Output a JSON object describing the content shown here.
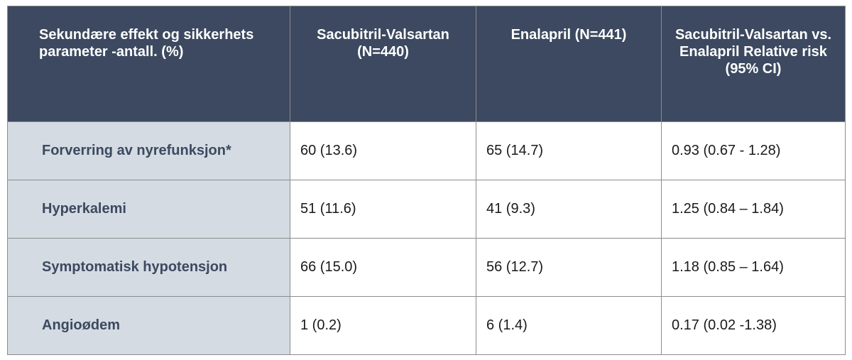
{
  "table": {
    "headers": [
      "Sekundære effekt og sikkerhets parameter -antall. (%)",
      "Sacubitril-Valsartan (N=440)",
      "Enalapril (N=441)",
      "Sacubitril-Valsartan vs. Enalapril Relative risk (95% CI)"
    ],
    "rows": [
      {
        "parameter": "Forverring av nyrefunksjon*",
        "sacubitril": "60 (13.6)",
        "enalapril": "65 (14.7)",
        "relative_risk": "0.93 (0.67 - 1.28)"
      },
      {
        "parameter": "Hyperkalemi",
        "sacubitril": "51 (11.6)",
        "enalapril": "41 (9.3)",
        "relative_risk": "1.25 (0.84 – 1.84)"
      },
      {
        "parameter": "Symptomatisk hypotensjon",
        "sacubitril": "66 (15.0)",
        "enalapril": "56 (12.7)",
        "relative_risk": "1.18 (0.85 – 1.64)"
      },
      {
        "parameter": "Angioødem",
        "sacubitril": "1 (0.2)",
        "enalapril": "6 (1.4)",
        "relative_risk": "0.17 (0.02 -1.38)"
      }
    ]
  },
  "colors": {
    "header_bg": "#3c4960",
    "header_text": "#ffffff",
    "param_bg": "#d4dbe3",
    "param_text": "#3c4960"
  }
}
